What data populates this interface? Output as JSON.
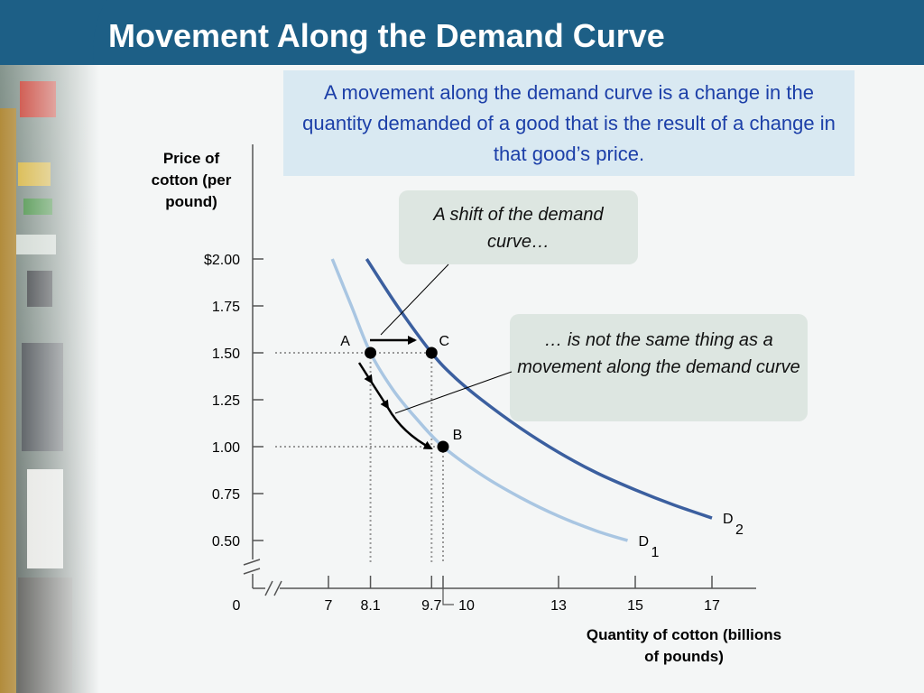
{
  "slide": {
    "title": "Movement Along the Demand Curve",
    "definition": "A movement along the demand curve is a change in the quantity demanded of a good that is the result of a change in that good’s price.",
    "callout_shift": "A shift of the demand curve…",
    "callout_movement": "… is not the same thing as a movement along the demand curve"
  },
  "colors": {
    "title_bar": "#1d5f86",
    "definition_box": "#d9e9f2",
    "definition_text": "#1c3fa8",
    "callout_bg": "#dde6e1",
    "d1_curve": "#a9c6e2",
    "d2_curve": "#3b5f9f",
    "photo_strip": "#6b7a72"
  },
  "chart_data": {
    "type": "line",
    "ylabel": "Price of cotton (per pound)",
    "xlabel": "Quantity of cotton (billions of pounds)",
    "x_ticks": [
      "0",
      "7",
      "8.1",
      "9.7",
      "10",
      "13",
      "15",
      "17"
    ],
    "y_ticks": [
      "$2.00",
      "1.75",
      "1.50",
      "1.25",
      "1.00",
      "0.75",
      "0.50"
    ],
    "y_tick_values": [
      2.0,
      1.75,
      1.5,
      1.25,
      1.0,
      0.75,
      0.5
    ],
    "axis_breaks": true,
    "series": [
      {
        "name": "D",
        "subscript": "1",
        "x": [
          7.1,
          7.6,
          8.1,
          8.7,
          9.3,
          10.0,
          11.0,
          12.0,
          13.0,
          14.0,
          14.8
        ],
        "y": [
          2.0,
          1.75,
          1.5,
          1.3,
          1.15,
          1.0,
          0.85,
          0.73,
          0.63,
          0.55,
          0.5
        ]
      },
      {
        "name": "D",
        "subscript": "2",
        "x": [
          8.0,
          8.8,
          9.7,
          10.3,
          11.0,
          12.0,
          13.0,
          14.0,
          15.0,
          16.0,
          17.0
        ],
        "y": [
          2.0,
          1.75,
          1.5,
          1.37,
          1.25,
          1.1,
          0.97,
          0.86,
          0.77,
          0.69,
          0.62
        ]
      }
    ],
    "points": [
      {
        "label": "A",
        "x": 8.1,
        "y": 1.5
      },
      {
        "label": "B",
        "x": 10,
        "y": 1.0
      },
      {
        "label": "C",
        "x": 9.7,
        "y": 1.5
      }
    ]
  }
}
